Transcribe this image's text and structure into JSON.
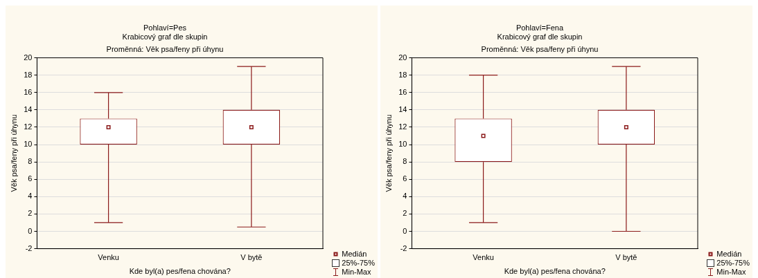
{
  "chart_data": [
    {
      "type": "box",
      "title": "Pohlaví=Pes",
      "subtitle": "Krabicový graf dle skupin",
      "xlabel": "Kde byl(a) pes/fena chována?",
      "ylabel": "Věk psa/feny při úhynu",
      "annotations": [
        "Proměnná: Věk psa/feny při úhynu",
        "Medián",
        "25%-75%",
        "Min-Max"
      ],
      "categories": [
        "Venku",
        "V bytě"
      ],
      "ylim": [
        -2,
        20
      ],
      "yticks": [
        -2,
        0,
        2,
        4,
        6,
        8,
        10,
        12,
        14,
        16,
        18,
        20
      ],
      "grid": "y",
      "series": [
        {
          "color": "#8b1a1a",
          "boxes": [
            {
              "low": 1,
              "q1": 10,
              "median": 12,
              "q3": 13,
              "high": 16
            },
            {
              "low": 0.5,
              "q1": 10,
              "median": 12,
              "q3": 14,
              "high": 19
            }
          ]
        }
      ]
    },
    {
      "type": "box",
      "title": "Pohlaví=Fena",
      "subtitle": "Krabicový graf dle skupin",
      "xlabel": "Kde byl(a) pes/fena chována?",
      "ylabel": "Věk psa/feny při úhynu",
      "annotations": [
        "Proměnná: Věk psa/feny při úhynu",
        "Medián",
        "25%-75%",
        "Min-Max"
      ],
      "categories": [
        "Venku",
        "V bytě"
      ],
      "ylim": [
        -2,
        20
      ],
      "yticks": [
        -2,
        0,
        2,
        4,
        6,
        8,
        10,
        12,
        14,
        16,
        18,
        20
      ],
      "grid": "y",
      "series": [
        {
          "color": "#8b1a1a",
          "boxes": [
            {
              "low": 1,
              "q1": 8,
              "median": 11,
              "q3": 13,
              "high": 18
            },
            {
              "low": 0,
              "q1": 10,
              "median": 12,
              "q3": 14,
              "high": 19
            }
          ]
        }
      ]
    }
  ]
}
